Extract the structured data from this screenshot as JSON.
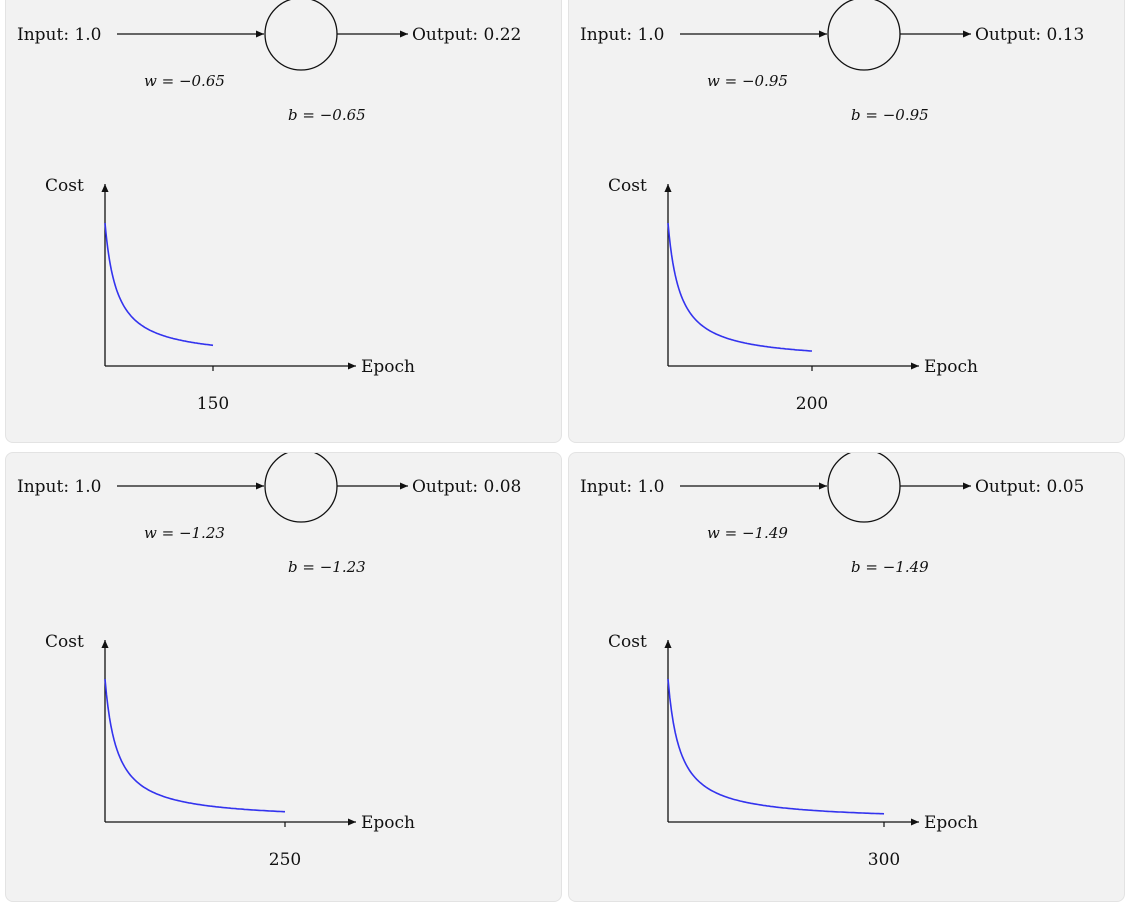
{
  "colors": {
    "panel_bg": "#f2f2f2",
    "curve": "#3333ee",
    "ink": "#111111"
  },
  "panels": [
    {
      "input_label": "Input: 1.0",
      "output_label": "Output: 0.22",
      "weight_label": "w = −0.65",
      "bias_label": "b = −0.65",
      "chart_data": {
        "type": "line",
        "ylabel": "Cost",
        "xlabel": "Epoch",
        "x_tick": "150",
        "x_end": 150,
        "y_start": 1.0,
        "y_end": 0.05
      }
    },
    {
      "input_label": "Input: 1.0",
      "output_label": "Output: 0.13",
      "weight_label": "w = −0.95",
      "bias_label": "b = −0.95",
      "chart_data": {
        "type": "line",
        "ylabel": "Cost",
        "xlabel": "Epoch",
        "x_tick": "200",
        "x_end": 200,
        "y_start": 1.0,
        "y_end": 0.03
      }
    },
    {
      "input_label": "Input: 1.0",
      "output_label": "Output: 0.08",
      "weight_label": "w = −1.23",
      "bias_label": "b = −1.23",
      "chart_data": {
        "type": "line",
        "ylabel": "Cost",
        "xlabel": "Epoch",
        "x_tick": "250",
        "x_end": 250,
        "y_start": 1.0,
        "y_end": 0.01
      }
    },
    {
      "input_label": "Input: 1.0",
      "output_label": "Output: 0.05",
      "weight_label": "w = −1.49",
      "bias_label": "b = −1.49",
      "chart_data": {
        "type": "line",
        "ylabel": "Cost",
        "xlabel": "Epoch",
        "x_tick": "300",
        "x_end": 300,
        "y_start": 1.0,
        "y_end": 0.005
      }
    }
  ]
}
